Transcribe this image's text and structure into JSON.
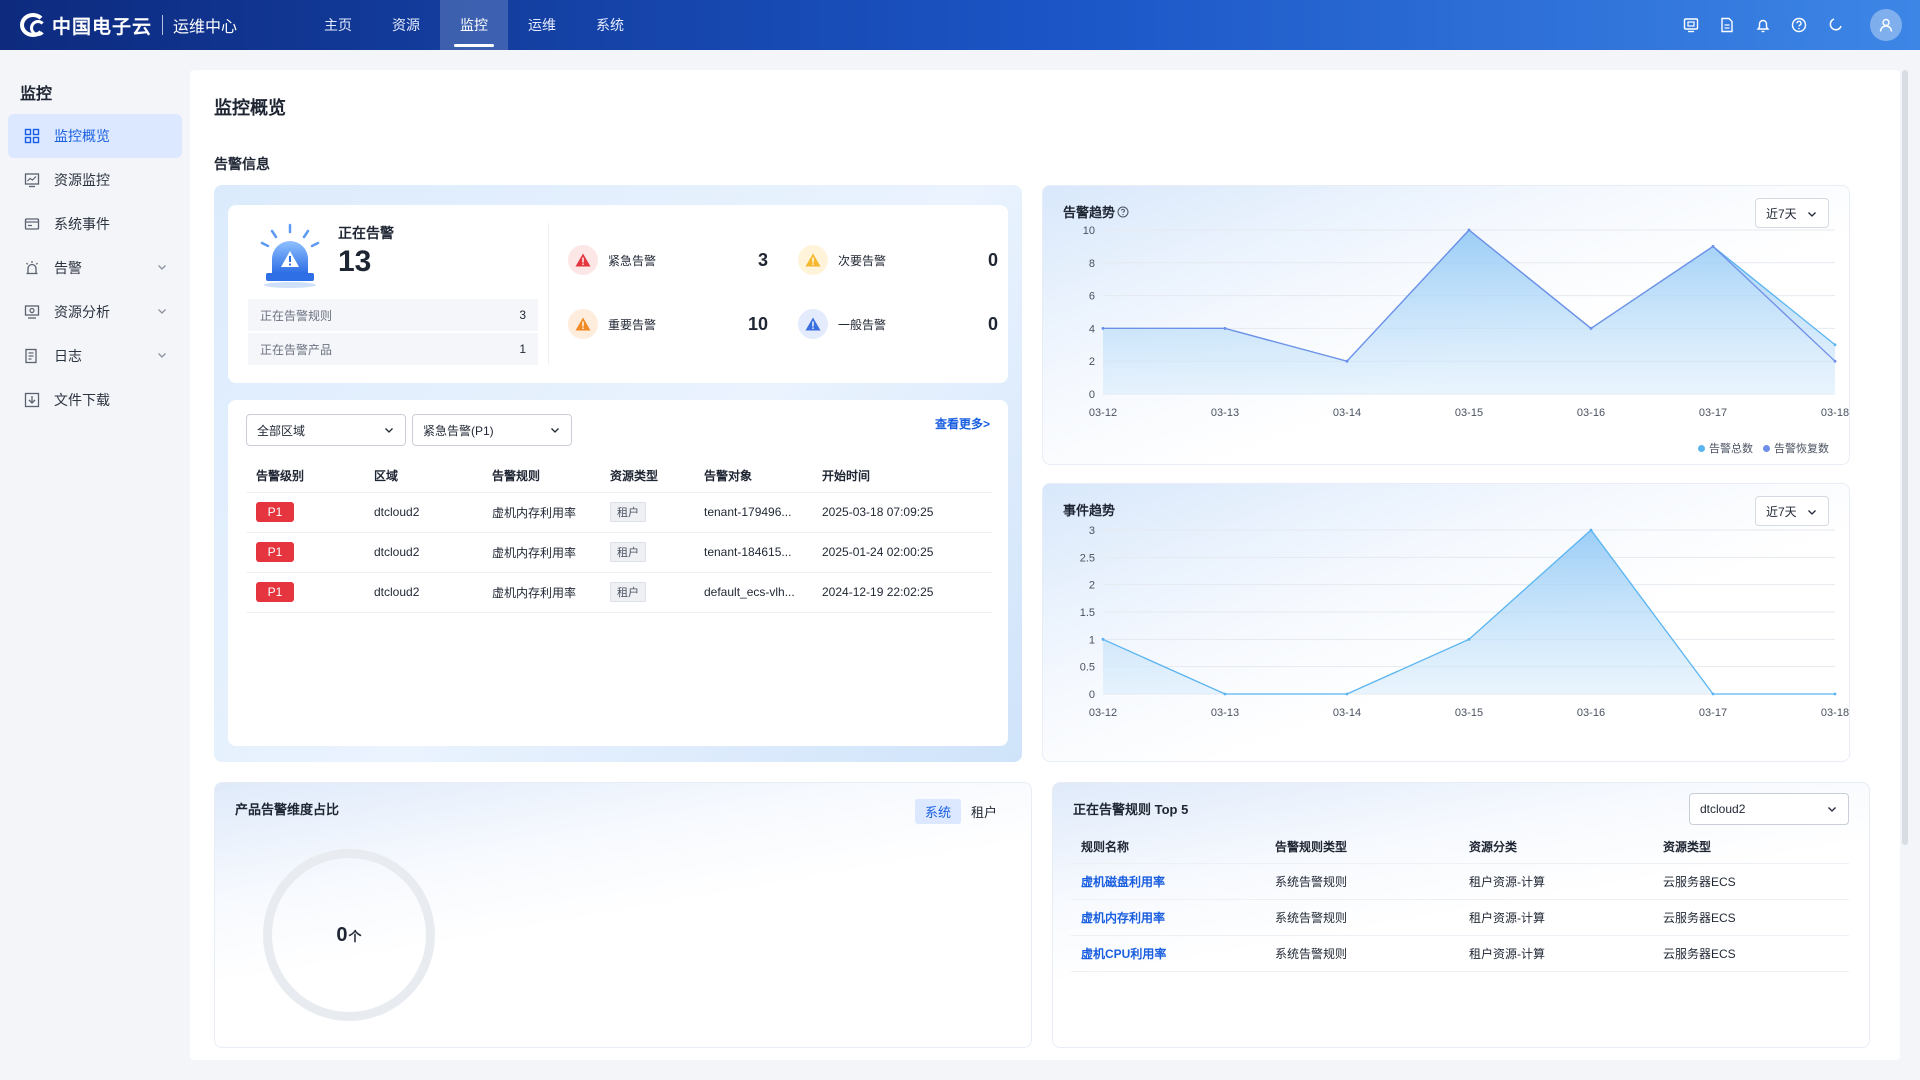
{
  "header": {
    "logo_text": "中国电子云",
    "sub_title": "运维中心",
    "nav": [
      {
        "label": "主页",
        "active": false
      },
      {
        "label": "资源",
        "active": false
      },
      {
        "label": "监控",
        "active": true
      },
      {
        "label": "运维",
        "active": false
      },
      {
        "label": "系统",
        "active": false
      }
    ],
    "icons": [
      "monitor-icon",
      "document-icon",
      "bell-icon",
      "help-icon",
      "moon-icon",
      "user-avatar-icon"
    ]
  },
  "sidebar": {
    "title": "监控",
    "items": [
      {
        "label": "监控概览",
        "icon": "grid-icon",
        "active": true,
        "expandable": false
      },
      {
        "label": "资源监控",
        "icon": "monitor-chart-icon",
        "active": false,
        "expandable": false
      },
      {
        "label": "系统事件",
        "icon": "event-icon",
        "active": false,
        "expandable": false
      },
      {
        "label": "告警",
        "icon": "alarm-icon",
        "active": false,
        "expandable": true
      },
      {
        "label": "资源分析",
        "icon": "analysis-icon",
        "active": false,
        "expandable": true
      },
      {
        "label": "日志",
        "icon": "log-icon",
        "active": false,
        "expandable": true
      },
      {
        "label": "文件下载",
        "icon": "download-icon",
        "active": false,
        "expandable": false
      }
    ]
  },
  "page": {
    "title": "监控概览",
    "section_alarm": "告警信息"
  },
  "alarm_summary": {
    "label": "正在告警",
    "count": "13",
    "rules_label": "正在告警规则",
    "rules_value": "3",
    "products_label": "正在告警产品",
    "products_value": "1",
    "severities": [
      {
        "label": "紧急告警",
        "value": "3",
        "color": "#e5353f"
      },
      {
        "label": "次要告警",
        "value": "0",
        "color": "#f5b82e"
      },
      {
        "label": "重要告警",
        "value": "10",
        "color": "#f08a24"
      },
      {
        "label": "一般告警",
        "value": "0",
        "color": "#3b6fe0"
      }
    ]
  },
  "alarm_list": {
    "region_select": "全部区域",
    "level_select": "紧急告警(P1)",
    "more_link": "查看更多>",
    "columns": [
      "告警级别",
      "区域",
      "告警规则",
      "资源类型",
      "告警对象",
      "开始时间"
    ],
    "rows": [
      {
        "level": "P1",
        "region": "dtcloud2",
        "rule": "虚机内存利用率",
        "type": "租户",
        "object": "tenant-179496...",
        "time": "2025-03-18 07:09:25"
      },
      {
        "level": "P1",
        "region": "dtcloud2",
        "rule": "虚机内存利用率",
        "type": "租户",
        "object": "tenant-184615...",
        "time": "2025-01-24 02:00:25"
      },
      {
        "level": "P1",
        "region": "dtcloud2",
        "rule": "虚机内存利用率",
        "type": "租户",
        "object": "default_ecs-vlh...",
        "time": "2024-12-19 22:02:25"
      }
    ]
  },
  "alarm_trend": {
    "title": "告警趋势",
    "range": "近7天"
  },
  "event_trend": {
    "title": "事件趋势",
    "range": "近7天"
  },
  "product_ratio": {
    "title": "产品告警维度占比",
    "tabs": [
      {
        "label": "系统",
        "active": true
      },
      {
        "label": "租户",
        "active": false
      }
    ],
    "value": "0",
    "unit": "个"
  },
  "top_rules": {
    "title": "正在告警规则 Top 5",
    "region_select": "dtcloud2",
    "columns": [
      "规则名称",
      "告警规则类型",
      "资源分类",
      "资源类型"
    ],
    "rows": [
      {
        "name": "虚机磁盘利用率",
        "rule_type": "系统告警规则",
        "category": "租户资源-计算",
        "resource_type": "云服务器ECS"
      },
      {
        "name": "虚机内存利用率",
        "rule_type": "系统告警规则",
        "category": "租户资源-计算",
        "resource_type": "云服务器ECS"
      },
      {
        "name": "虚机CPU利用率",
        "rule_type": "系统告警规则",
        "category": "租户资源-计算",
        "resource_type": "云服务器ECS"
      }
    ]
  },
  "chart_data": [
    {
      "type": "area",
      "title": "告警趋势",
      "x": [
        "03-12",
        "03-13",
        "03-14",
        "03-15",
        "03-16",
        "03-17",
        "03-18"
      ],
      "ylim": [
        0,
        10
      ],
      "yticks": [
        0,
        2,
        4,
        6,
        8,
        10
      ],
      "series": [
        {
          "name": "告警总数",
          "values": [
            4,
            4,
            2,
            10,
            4,
            9,
            3
          ],
          "color": "#5ab4f0"
        },
        {
          "name": "告警恢复数",
          "values": [
            4,
            4,
            2,
            10,
            4,
            9,
            2
          ],
          "color": "#6f8fe8"
        }
      ],
      "legend": "bottom-right",
      "grid": true
    },
    {
      "type": "area",
      "title": "事件趋势",
      "x": [
        "03-12",
        "03-13",
        "03-14",
        "03-15",
        "03-16",
        "03-17",
        "03-18"
      ],
      "ylim": [
        0,
        3
      ],
      "yticks": [
        0,
        0.5,
        1,
        1.5,
        2,
        2.5,
        3
      ],
      "series": [
        {
          "values": [
            1,
            0,
            0,
            1,
            3,
            0,
            0
          ],
          "color": "#5ab4f0"
        }
      ],
      "grid": true
    }
  ]
}
